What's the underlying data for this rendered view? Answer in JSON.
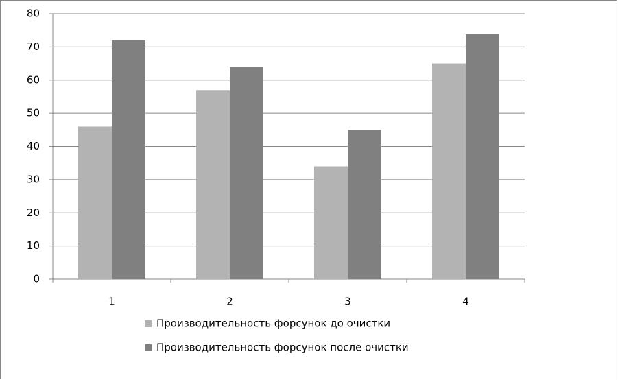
{
  "chart_data": {
    "type": "bar",
    "categories": [
      "1",
      "2",
      "3",
      "4"
    ],
    "series": [
      {
        "name": "Производительность форсунок до очистки",
        "color": "#b3b3b3",
        "values": [
          46,
          57,
          34,
          65
        ]
      },
      {
        "name": "Производительность форсунок после очистки",
        "color": "#808080",
        "values": [
          72,
          64,
          45,
          74
        ]
      }
    ],
    "ylim": [
      0,
      80
    ],
    "yticks": [
      0,
      10,
      20,
      30,
      40,
      50,
      60,
      70,
      80
    ],
    "grid": true,
    "legend": "bottom"
  }
}
